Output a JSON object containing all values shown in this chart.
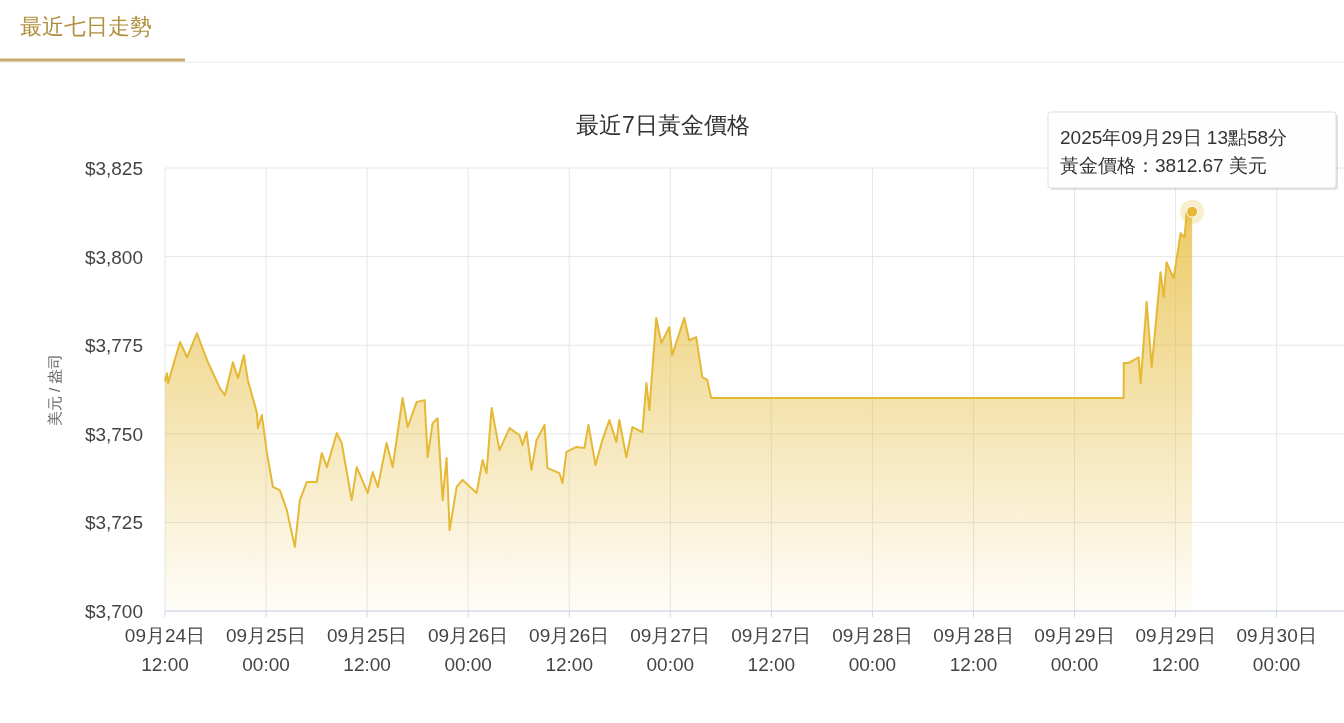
{
  "chart_data": {
    "type": "area",
    "title": "最近7日黃金價格",
    "ylabel": "美元 / 盎司",
    "x": [
      "2025-09-24T12:00",
      "2025-09-24T12:14",
      "2025-09-24T12:21",
      "2025-09-24T13:47",
      "2025-09-24T14:37",
      "2025-09-24T15:48",
      "2025-09-24T16:23",
      "2025-09-24T17:06",
      "2025-09-24T18:31",
      "2025-09-24T19:07",
      "2025-09-24T20:04",
      "2025-09-24T20:40",
      "2025-09-24T21:22",
      "2025-09-24T21:50",
      "2025-09-24T22:55",
      "2025-09-24T23:02",
      "2025-09-24T23:30",
      "2025-09-25T00:06",
      "2025-09-25T00:49",
      "2025-09-25T01:38",
      "2025-09-25T02:28",
      "2025-09-25T03:25",
      "2025-09-25T04:01",
      "2025-09-25T04:50",
      "2025-09-25T06:01",
      "2025-09-25T06:37",
      "2025-09-25T07:13",
      "2025-09-25T08:24",
      "2025-09-25T08:59",
      "2025-09-25T10:10",
      "2025-09-25T10:46",
      "2025-09-25T12:04",
      "2025-09-25T12:40",
      "2025-09-25T13:16",
      "2025-09-25T14:19",
      "2025-09-25T15:02",
      "2025-09-25T16:13",
      "2025-09-25T16:49",
      "2025-09-25T17:53",
      "2025-09-25T18:50",
      "2025-09-25T19:11",
      "2025-09-25T19:47",
      "2025-09-25T20:22",
      "2025-09-25T20:58",
      "2025-09-25T21:26",
      "2025-09-25T21:48",
      "2025-09-25T22:38",
      "2025-09-25T23:20",
      "2025-09-26T01:00",
      "2025-09-26T01:43",
      "2025-09-26T02:11",
      "2025-09-26T02:47",
      "2025-09-26T03:43",
      "2025-09-26T04:55",
      "2025-09-26T06:06",
      "2025-09-26T06:27",
      "2025-09-26T06:56",
      "2025-09-26T07:31",
      "2025-09-26T08:07",
      "2025-09-26T09:04",
      "2025-09-26T09:25",
      "2025-09-26T10:50",
      "2025-09-26T11:12",
      "2025-09-26T11:40",
      "2025-09-26T12:52",
      "2025-09-26T13:48",
      "2025-09-26T14:17",
      "2025-09-26T15:07",
      "2025-09-26T15:56",
      "2025-09-26T16:46",
      "2025-09-26T17:36",
      "2025-09-26T17:57",
      "2025-09-26T18:47",
      "2025-09-26T19:30",
      "2025-09-26T20:41",
      "2025-09-26T21:10",
      "2025-09-26T21:31",
      "2025-09-26T22:20",
      "2025-09-26T22:56",
      "2025-09-26T23:53",
      "2025-09-27T00:14",
      "2025-09-27T01:40",
      "2025-09-27T02:15",
      "2025-09-27T03:05",
      "2025-09-27T03:48",
      "2025-09-27T04:23",
      "2025-09-27T04:52",
      "2025-09-29T05:50",
      "2025-09-29T05:51",
      "2025-09-29T06:26",
      "2025-09-29T07:37",
      "2025-09-29T07:51",
      "2025-09-29T08:34",
      "2025-09-29T09:10",
      "2025-09-29T10:13",
      "2025-09-29T10:35",
      "2025-09-29T10:56",
      "2025-09-29T11:46",
      "2025-09-29T12:36",
      "2025-09-29T13:04",
      "2025-09-29T13:19",
      "2025-09-29T13:58"
    ],
    "series": [
      {
        "color": "#e5b935",
        "values": [
          3765,
          3767.1,
          3764.3,
          3775.9,
          3771.6,
          3778.4,
          3774.5,
          3770.2,
          3762.9,
          3760.9,
          3770.2,
          3765.7,
          3772.2,
          3765.2,
          3755.9,
          3751.6,
          3755.3,
          3744.6,
          3735.0,
          3734.1,
          3728.5,
          3718.1,
          3731.3,
          3736.4,
          3736.4,
          3744.6,
          3740.6,
          3750.2,
          3747.4,
          3731.3,
          3740.6,
          3733.3,
          3739.2,
          3735.0,
          3747.4,
          3740.6,
          3760.1,
          3751.9,
          3759.0,
          3759.5,
          3743.4,
          3753.0,
          3754.4,
          3731.3,
          3743.2,
          3722.8,
          3735.0,
          3737.0,
          3733.3,
          3742.6,
          3738.9,
          3757.3,
          3745.4,
          3751.6,
          3749.6,
          3746.8,
          3750.5,
          3739.8,
          3748.2,
          3752.5,
          3740.3,
          3738.9,
          3736.1,
          3744.9,
          3746.3,
          3746.0,
          3752.5,
          3741.2,
          3748.2,
          3753.9,
          3747.7,
          3753.9,
          3743.4,
          3751.9,
          3750.5,
          3764.3,
          3756.7,
          3782.7,
          3775.6,
          3780.1,
          3772.2,
          3782.7,
          3776.4,
          3777.3,
          3766.0,
          3765.2,
          3760.1,
          3760.1,
          3770.0,
          3770.0,
          3771.6,
          3764.3,
          3787.2,
          3768.8,
          3795.6,
          3788.6,
          3798.4,
          3793.9,
          3806.6,
          3805.5,
          3812.3,
          3812.67
        ]
      }
    ],
    "xlim": [
      "2025-09-24T12:00",
      "2025-09-30T08:00"
    ],
    "xticks": [
      {
        "value": "2025-09-24T12:00",
        "label": "09月24日\n12:00"
      },
      {
        "value": "2025-09-25T00:00",
        "label": "09月25日\n00:00"
      },
      {
        "value": "2025-09-25T12:00",
        "label": "09月25日\n12:00"
      },
      {
        "value": "2025-09-26T00:00",
        "label": "09月26日\n00:00"
      },
      {
        "value": "2025-09-26T12:00",
        "label": "09月26日\n12:00"
      },
      {
        "value": "2025-09-27T00:00",
        "label": "09月27日\n00:00"
      },
      {
        "value": "2025-09-27T12:00",
        "label": "09月27日\n12:00"
      },
      {
        "value": "2025-09-28T00:00",
        "label": "09月28日\n00:00"
      },
      {
        "value": "2025-09-28T12:00",
        "label": "09月28日\n12:00"
      },
      {
        "value": "2025-09-29T00:00",
        "label": "09月29日\n00:00"
      },
      {
        "value": "2025-09-29T12:00",
        "label": "09月29日\n12:00"
      },
      {
        "value": "2025-09-30T00:00",
        "label": "09月30日\n00:00"
      }
    ],
    "ylim": [
      3700,
      3825
    ],
    "yticks": [
      {
        "value": 3700,
        "label": "$3,700"
      },
      {
        "value": 3725,
        "label": "$3,725"
      },
      {
        "value": 3750,
        "label": "$3,750"
      },
      {
        "value": 3775,
        "label": "$3,775"
      },
      {
        "value": 3800,
        "label": "$3,800"
      },
      {
        "value": 3825,
        "label": "$3,825"
      }
    ],
    "grid": true,
    "annotations": [
      "最近七日走勢",
      "2025年09月29日 13點58分",
      {
        "text": "黃金價格：3812.67 美元",
        "x": "2025-09-29T13:58",
        "y": 3812.67
      }
    ]
  }
}
